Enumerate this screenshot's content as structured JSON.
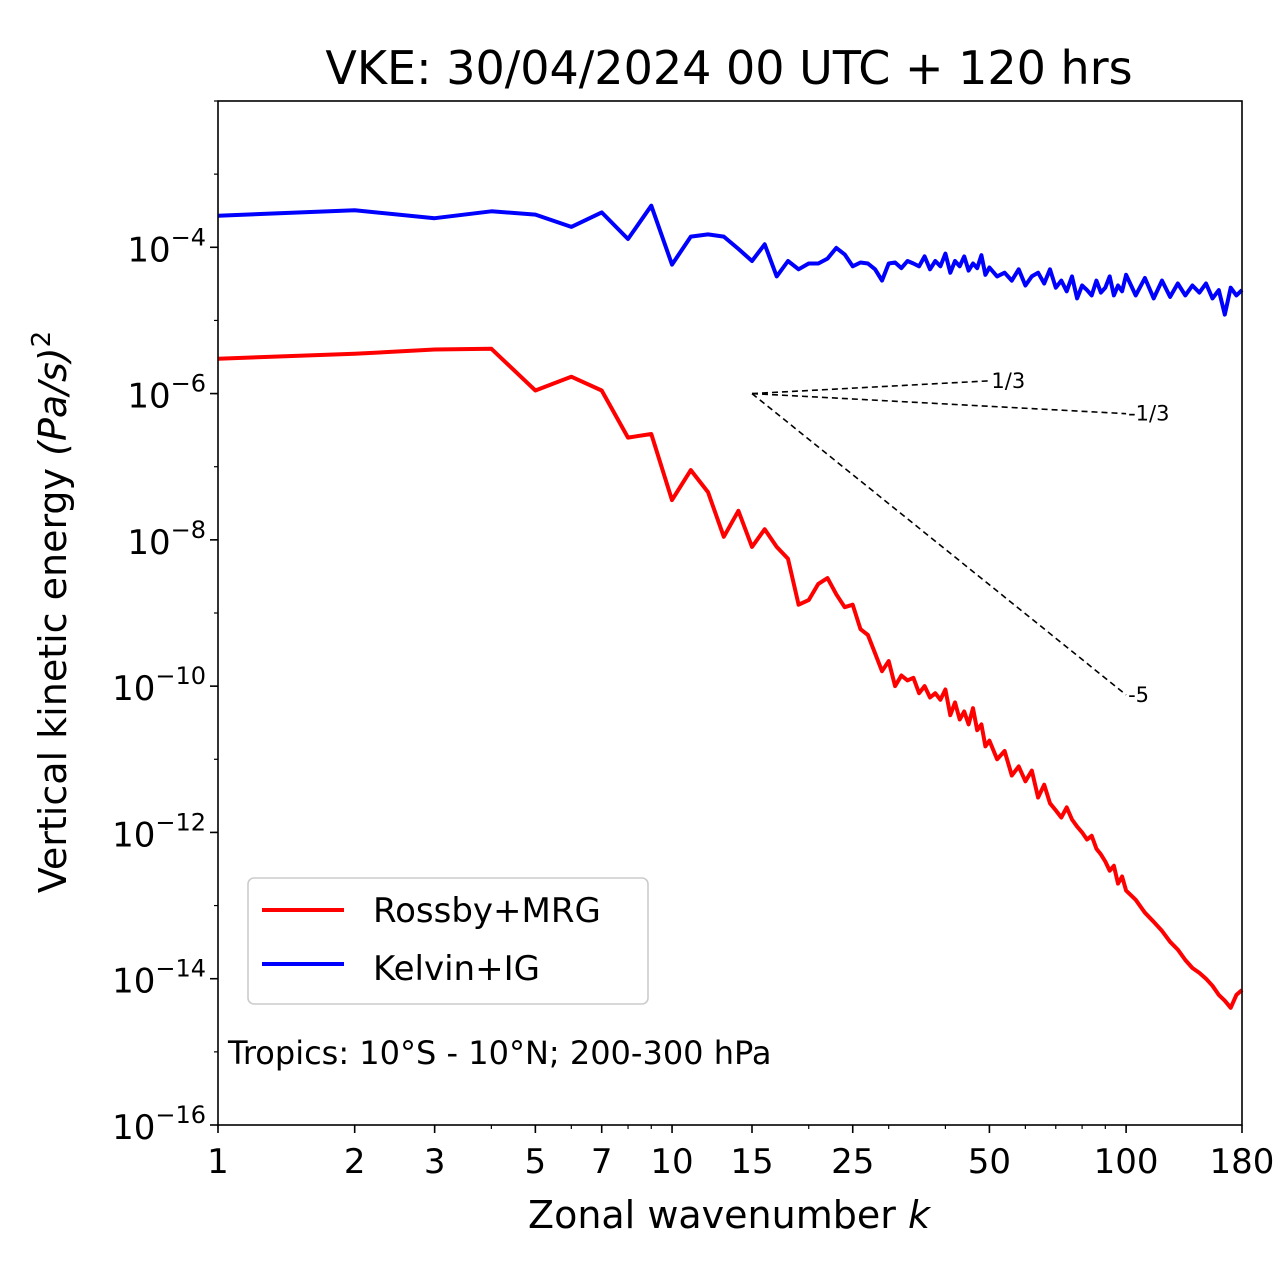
{
  "chart_data": {
    "type": "line",
    "title": "VKE: 30/04/2024 00 UTC + 120 hrs",
    "xlabel": "Zonal wavenumber",
    "xlabel_symbol": "k",
    "ylabel": "Vertical kinetic energy",
    "ylabel_units": "(Pa/s)",
    "ylabel_power": "2",
    "xscale": "log",
    "yscale": "log",
    "xlim": [
      1,
      180
    ],
    "ylim": [
      1e-16,
      0.01
    ],
    "x_ticks": [
      1,
      2,
      3,
      5,
      7,
      10,
      15,
      25,
      50,
      100,
      180
    ],
    "x_tick_labels": [
      "1",
      "2",
      "3",
      "5",
      "7",
      "10",
      "15",
      "25",
      "50",
      "100",
      "180"
    ],
    "y_tick_exponents": [
      -4,
      -6,
      -8,
      -10,
      -12,
      -14,
      -16
    ],
    "y_tick_base": "10",
    "grid": false,
    "legend_position": "lower-left",
    "annotation": "Tropics: 10°S - 10°N; 200-300 hPa",
    "reference_lines": [
      {
        "label": "1/3",
        "slope": 0.3333,
        "x0": 15,
        "y0": 1e-06,
        "x1": 50
      },
      {
        "label": "-1/3",
        "slope": -0.3333,
        "x0": 15,
        "y0": 1e-06,
        "x1": 100
      },
      {
        "label": "-5",
        "slope": -5,
        "x0": 15,
        "y0": 1e-06,
        "x1": 100
      }
    ],
    "series": [
      {
        "name": "Rossby+MRG",
        "color": "#ff0000",
        "x": [
          1,
          2,
          3,
          4,
          5,
          6,
          7,
          8,
          9,
          10,
          11,
          12,
          13,
          14,
          15,
          16,
          17,
          18,
          19,
          20,
          21,
          22,
          23,
          24,
          25,
          26,
          27,
          28,
          29,
          30,
          31,
          32,
          33,
          34,
          35,
          36,
          37,
          38,
          39,
          40,
          41,
          42,
          43,
          44,
          45,
          46,
          47,
          48,
          49,
          50,
          52,
          54,
          56,
          58,
          60,
          62,
          64,
          66,
          68,
          70,
          72,
          74,
          76,
          78,
          80,
          82,
          84,
          86,
          88,
          90,
          92,
          94,
          96,
          98,
          100,
          105,
          110,
          115,
          120,
          125,
          130,
          135,
          140,
          145,
          150,
          155,
          160,
          165,
          170,
          175,
          180
        ],
        "y": [
          3e-06,
          3.5e-06,
          4e-06,
          4.1e-06,
          1.1e-06,
          1.7e-06,
          1.1e-06,
          2.5e-07,
          2.8e-07,
          3.5e-08,
          9e-08,
          4.5e-08,
          1.1e-08,
          2.5e-08,
          8e-09,
          1.4e-08,
          8e-09,
          5.5e-09,
          1.3e-09,
          1.5e-09,
          2.5e-09,
          3e-09,
          1.8e-09,
          1.2e-09,
          1.3e-09,
          6e-10,
          5e-10,
          2.8e-10,
          1.6e-10,
          2.2e-10,
          1e-10,
          1.4e-10,
          1.2e-10,
          1.3e-10,
          8e-11,
          1e-10,
          7e-11,
          8e-11,
          6.5e-11,
          9e-11,
          4e-11,
          6e-11,
          3.5e-11,
          4.5e-11,
          3e-11,
          5e-11,
          2.5e-11,
          3e-11,
          1.5e-11,
          1.8e-11,
          1e-11,
          1.3e-11,
          6e-12,
          8e-12,
          5e-12,
          7e-12,
          3e-12,
          4.5e-12,
          2.5e-12,
          2e-12,
          1.6e-12,
          2.2e-12,
          1.5e-12,
          1.2e-12,
          1e-12,
          8e-13,
          9e-13,
          6e-13,
          5e-13,
          4e-13,
          3e-13,
          3.5e-13,
          2e-13,
          2.5e-13,
          1.6e-13,
          1.2e-13,
          8e-14,
          6e-14,
          4.5e-14,
          3.2e-14,
          2.5e-14,
          1.8e-14,
          1.4e-14,
          1.2e-14,
          1e-14,
          8e-15,
          6e-15,
          5e-15,
          4e-15,
          6e-15,
          7e-15
        ]
      },
      {
        "name": "Kelvin+IG",
        "color": "#0000ff",
        "x": [
          1,
          2,
          3,
          4,
          5,
          6,
          7,
          8,
          9,
          10,
          11,
          12,
          13,
          14,
          15,
          16,
          17,
          18,
          19,
          20,
          21,
          22,
          23,
          24,
          25,
          26,
          27,
          28,
          29,
          30,
          31,
          32,
          33,
          34,
          35,
          36,
          37,
          38,
          39,
          40,
          41,
          42,
          43,
          44,
          45,
          46,
          47,
          48,
          49,
          50,
          52,
          54,
          56,
          58,
          60,
          62,
          64,
          66,
          68,
          70,
          72,
          74,
          76,
          78,
          80,
          82,
          84,
          86,
          88,
          90,
          92,
          94,
          96,
          98,
          100,
          105,
          110,
          115,
          120,
          125,
          130,
          135,
          140,
          145,
          150,
          155,
          160,
          165,
          170,
          175,
          180
        ],
        "y": [
          0.00027,
          0.00032,
          0.00025,
          0.00031,
          0.00028,
          0.00019,
          0.0003,
          0.00013,
          0.00037,
          5.8e-05,
          0.00014,
          0.00015,
          0.00014,
          9.5e-05,
          6.5e-05,
          0.00011,
          4e-05,
          6.5e-05,
          5e-05,
          6e-05,
          6e-05,
          7e-05,
          9.8e-05,
          8e-05,
          5.5e-05,
          6.2e-05,
          6e-05,
          5e-05,
          3.5e-05,
          6e-05,
          6.2e-05,
          5.2e-05,
          6.5e-05,
          6e-05,
          5.5e-05,
          7.5e-05,
          5e-05,
          6.5e-05,
          5.5e-05,
          8.2e-05,
          4.5e-05,
          6.5e-05,
          5.5e-05,
          7.5e-05,
          4.8e-05,
          6e-05,
          5.2e-05,
          7.8e-05,
          4.2e-05,
          5.3e-05,
          4e-05,
          4.5e-05,
          3.5e-05,
          5e-05,
          3e-05,
          4e-05,
          4.5e-05,
          3.2e-05,
          5e-05,
          2.8e-05,
          3.5e-05,
          2.5e-05,
          4e-05,
          2e-05,
          3e-05,
          2.6e-05,
          2.2e-05,
          3.5e-05,
          2.4e-05,
          2.8e-05,
          4e-05,
          2.2e-05,
          3e-05,
          2.5e-05,
          4.2e-05,
          2.2e-05,
          3.8e-05,
          2e-05,
          3.5e-05,
          2.1e-05,
          3.2e-05,
          2.2e-05,
          3e-05,
          2.4e-05,
          3.2e-05,
          2e-05,
          2.6e-05,
          1.2e-05,
          2.8e-05,
          2.2e-05,
          2.6e-05
        ]
      }
    ]
  }
}
